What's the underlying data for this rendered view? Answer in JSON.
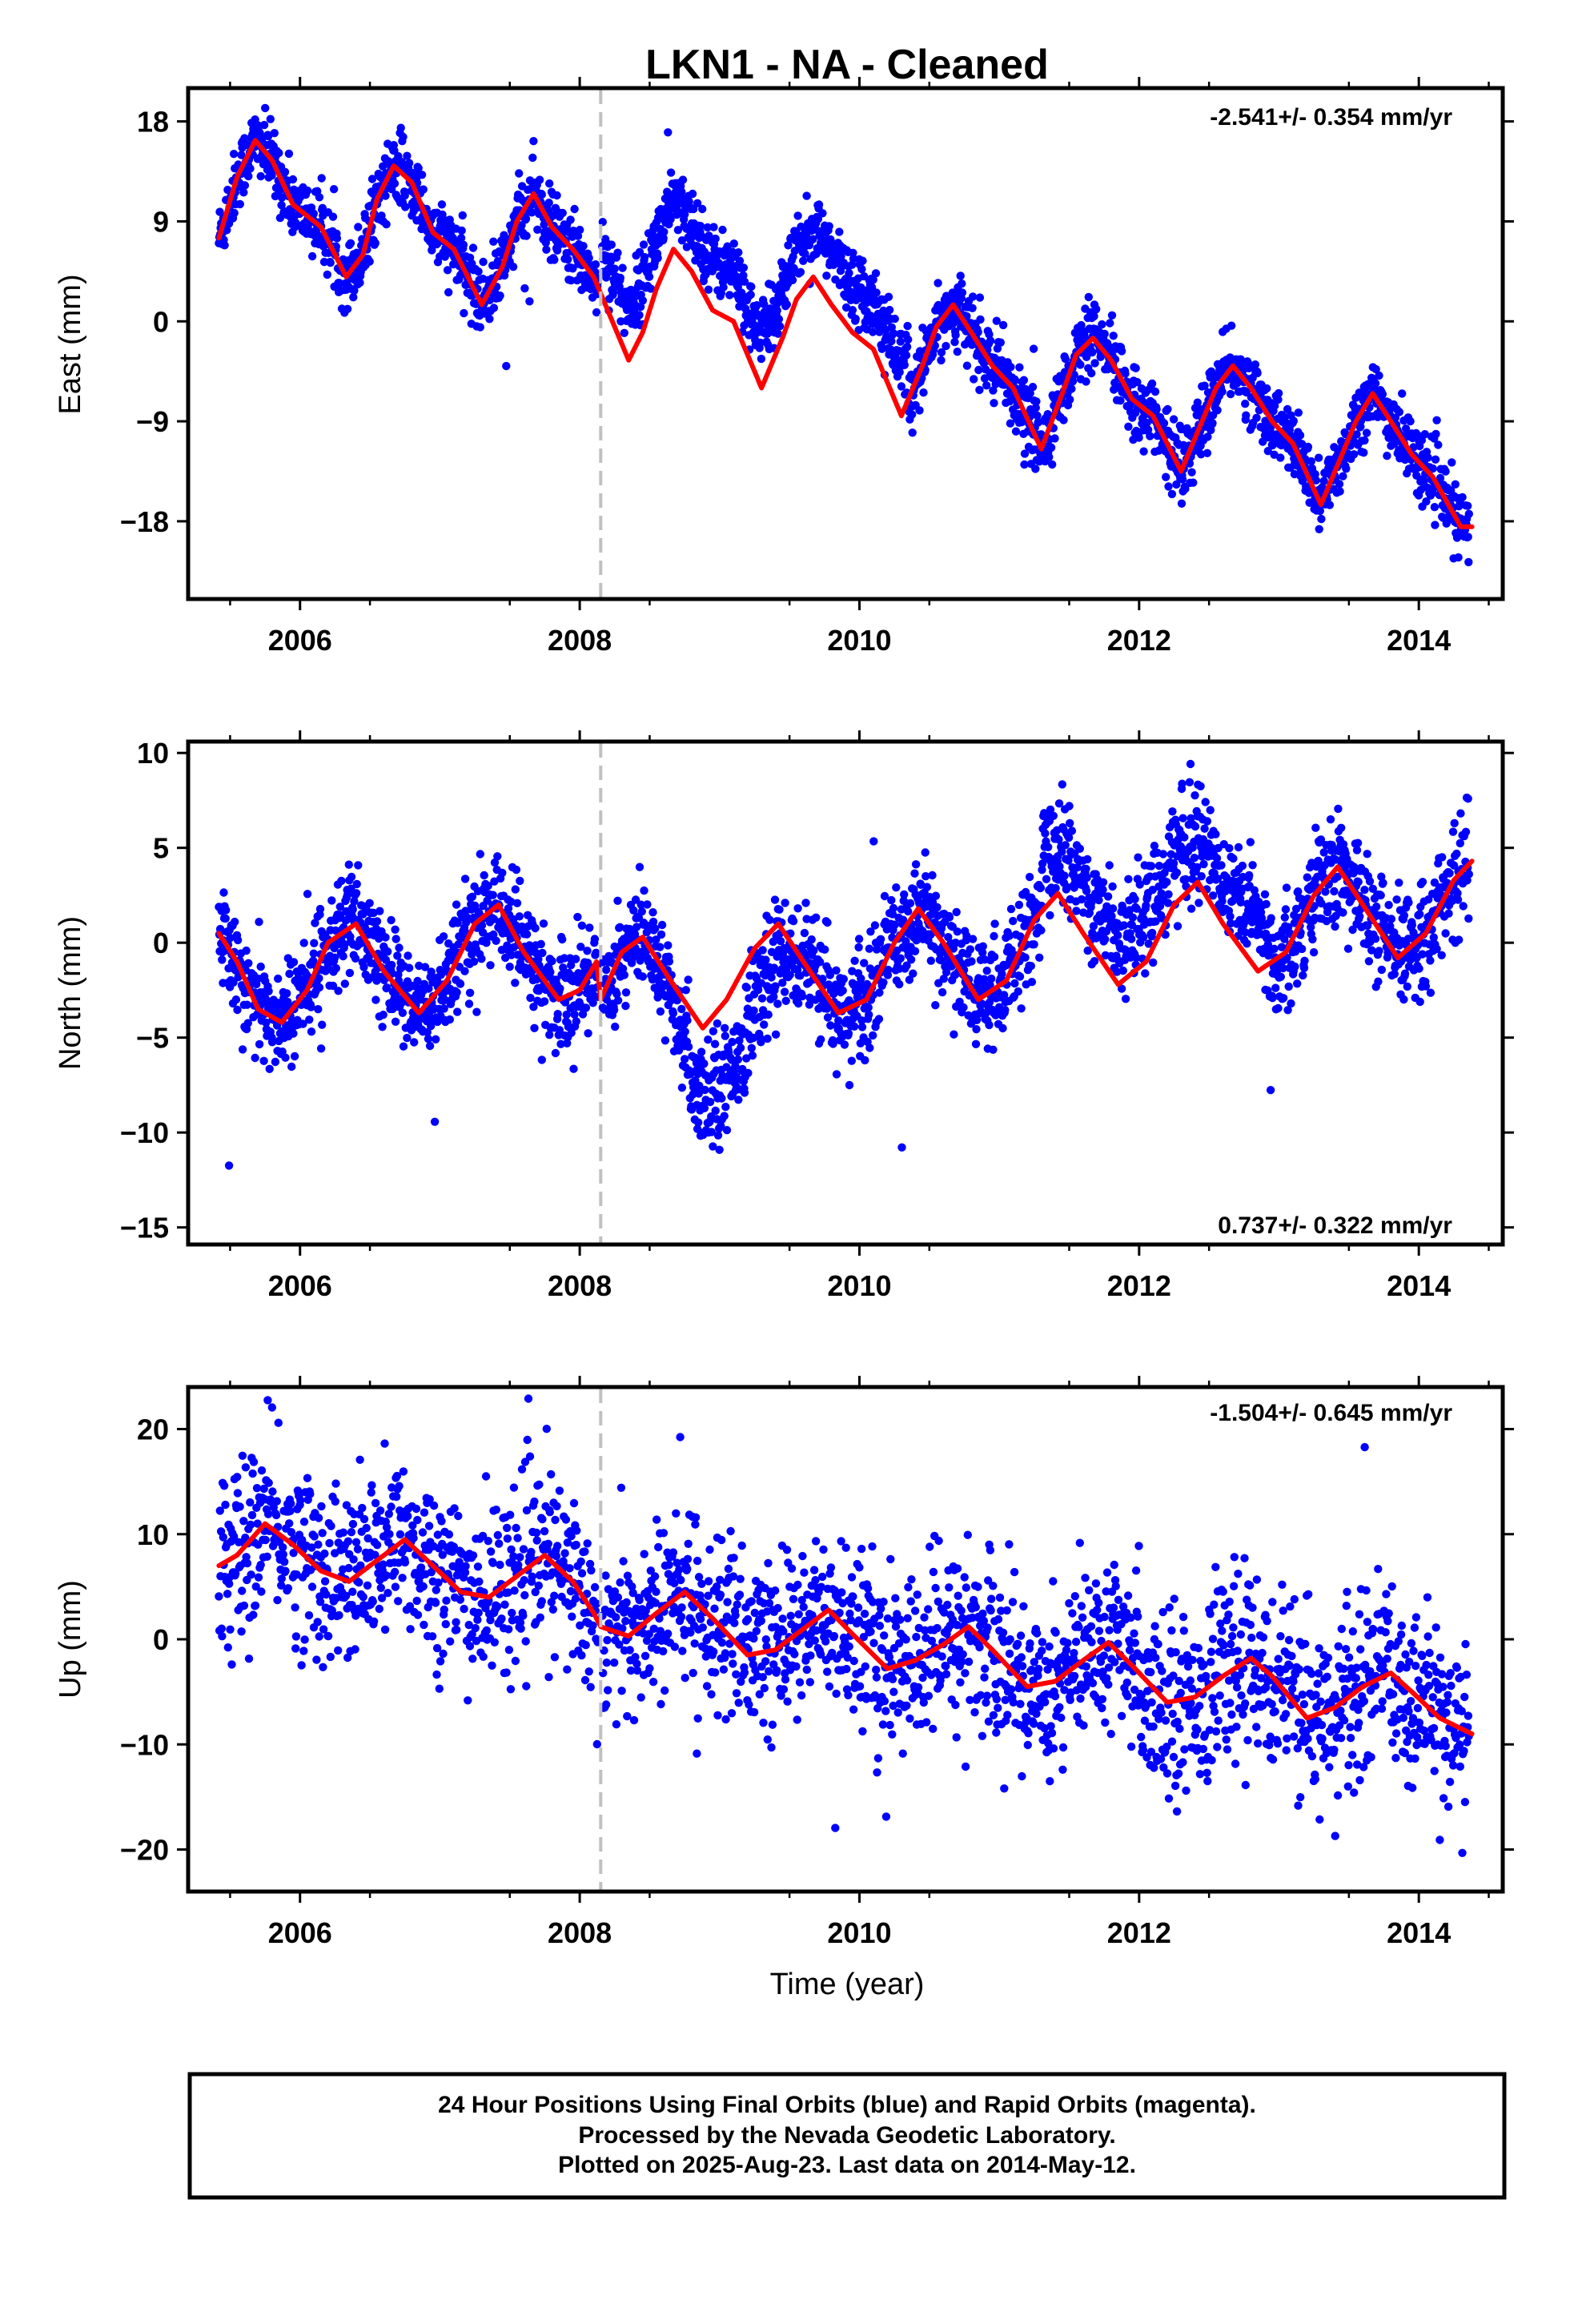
{
  "title": "LKN1  - NA - Cleaned",
  "colors": {
    "points": "#0000ff",
    "model": "#ff0000",
    "event_line": "#c0c0c0"
  },
  "chart_data": [
    {
      "type": "scatter",
      "ylabel": "East (mm)",
      "rate_text": "-2.541+/- 0.354 mm/yr",
      "yticks": [
        "18",
        "9",
        "0",
        "-9",
        "-18"
      ],
      "xticks": [
        "2006",
        "2008",
        "2010",
        "2012",
        "2014"
      ],
      "xlim": [
        2005.2,
        2014.6
      ],
      "ylim": [
        -25,
        21
      ],
      "event_line_x": 2008.15,
      "series": [
        {
          "kind": "daily positions (blue dots)",
          "trend": -2.541,
          "amplitude": 6.5,
          "noise": 1.5,
          "offsets": [
            [
              2005.4,
              2008.15,
              10.5
            ],
            [
              2008.15,
              2010.4,
              8.0
            ],
            [
              2010.4,
              2012.3,
              2.0
            ],
            [
              2012.3,
              2014.4,
              2.0
            ]
          ]
        },
        {
          "kind": "model fit (red line)",
          "samples": [
            [
              2005.42,
              7.5
            ],
            [
              2005.55,
              13
            ],
            [
              2005.68,
              16.3
            ],
            [
              2005.8,
              14.5
            ],
            [
              2005.95,
              10.5
            ],
            [
              2006.15,
              8.5
            ],
            [
              2006.33,
              4
            ],
            [
              2006.45,
              6
            ],
            [
              2006.55,
              11
            ],
            [
              2006.67,
              14
            ],
            [
              2006.8,
              12.5
            ],
            [
              2006.95,
              8
            ],
            [
              2007.1,
              6.5
            ],
            [
              2007.3,
              1.5
            ],
            [
              2007.45,
              5
            ],
            [
              2007.55,
              9
            ],
            [
              2007.67,
              11.5
            ],
            [
              2007.8,
              8.5
            ],
            [
              2007.95,
              6.5
            ],
            [
              2008.1,
              4
            ],
            [
              2008.15,
              2.5
            ],
            [
              2008.2,
              1
            ],
            [
              2008.35,
              -3.5
            ],
            [
              2008.45,
              -1
            ],
            [
              2008.55,
              3
            ],
            [
              2008.67,
              6.5
            ],
            [
              2008.8,
              4.5
            ],
            [
              2008.95,
              1
            ],
            [
              2009.1,
              0
            ],
            [
              2009.3,
              -6
            ],
            [
              2009.45,
              -1.5
            ],
            [
              2009.55,
              2
            ],
            [
              2009.67,
              4
            ],
            [
              2009.8,
              1.5
            ],
            [
              2009.95,
              -1
            ],
            [
              2010.1,
              -2.5
            ],
            [
              2010.3,
              -8.5
            ],
            [
              2010.45,
              -4
            ],
            [
              2010.55,
              -0.5
            ],
            [
              2010.67,
              1.5
            ],
            [
              2010.8,
              -1
            ],
            [
              2010.95,
              -4
            ],
            [
              2011.1,
              -6
            ],
            [
              2011.3,
              -11.5
            ],
            [
              2011.45,
              -6.5
            ],
            [
              2011.55,
              -3
            ],
            [
              2011.67,
              -1.5
            ],
            [
              2011.8,
              -3.5
            ],
            [
              2011.95,
              -7
            ],
            [
              2012.1,
              -8.5
            ],
            [
              2012.3,
              -13.5
            ],
            [
              2012.45,
              -9
            ],
            [
              2012.55,
              -6
            ],
            [
              2012.67,
              -4
            ],
            [
              2012.8,
              -6
            ],
            [
              2012.95,
              -9
            ],
            [
              2013.1,
              -11
            ],
            [
              2013.3,
              -16.5
            ],
            [
              2013.45,
              -12
            ],
            [
              2013.55,
              -9
            ],
            [
              2013.67,
              -6.5
            ],
            [
              2013.8,
              -9
            ],
            [
              2013.95,
              -12
            ],
            [
              2014.1,
              -14
            ],
            [
              2014.3,
              -18.5
            ],
            [
              2014.38,
              -18.5
            ]
          ]
        }
      ]
    },
    {
      "type": "scatter",
      "ylabel": "North (mm)",
      "rate_text": "0.737+/- 0.322 mm/yr",
      "yticks": [
        "10",
        "5",
        "0",
        "-5",
        "-10",
        "-15"
      ],
      "xticks": [
        "2006",
        "2008",
        "2010",
        "2012",
        "2014"
      ],
      "xlim": [
        2005.2,
        2014.6
      ],
      "ylim": [
        -15.9,
        10.6
      ],
      "event_line_x": 2008.15,
      "series": [
        {
          "kind": "daily positions (blue dots)",
          "trend": 0.737,
          "amplitude": 4.0,
          "noise": 1.4,
          "offsets": [
            [
              2005.4,
              2008.15,
              0.3
            ],
            [
              2008.15,
              2010.4,
              -4.5
            ],
            [
              2010.4,
              2012.3,
              2.0
            ],
            [
              2012.3,
              2014.4,
              1.5
            ]
          ]
        },
        {
          "kind": "model fit (red line)",
          "samples": [
            [
              2005.42,
              0.5
            ],
            [
              2005.55,
              -1
            ],
            [
              2005.7,
              -3.5
            ],
            [
              2005.87,
              -4.2
            ],
            [
              2006.05,
              -2.5
            ],
            [
              2006.2,
              0
            ],
            [
              2006.4,
              1
            ],
            [
              2006.6,
              -1.5
            ],
            [
              2006.85,
              -3.7
            ],
            [
              2007.05,
              -2
            ],
            [
              2007.25,
              1
            ],
            [
              2007.42,
              2
            ],
            [
              2007.6,
              -0.5
            ],
            [
              2007.85,
              -3
            ],
            [
              2008.0,
              -2.5
            ],
            [
              2008.12,
              -1
            ],
            [
              2008.15,
              -3
            ],
            [
              2008.3,
              -0.5
            ],
            [
              2008.45,
              0.3
            ],
            [
              2008.65,
              -2
            ],
            [
              2008.88,
              -4.5
            ],
            [
              2009.05,
              -3
            ],
            [
              2009.25,
              -0.3
            ],
            [
              2009.42,
              1
            ],
            [
              2009.6,
              -1
            ],
            [
              2009.85,
              -3.7
            ],
            [
              2010.05,
              -3
            ],
            [
              2010.25,
              0
            ],
            [
              2010.42,
              1.8
            ],
            [
              2010.6,
              0
            ],
            [
              2010.85,
              -3
            ],
            [
              2011.05,
              -2
            ],
            [
              2011.25,
              1.2
            ],
            [
              2011.42,
              2.6
            ],
            [
              2011.6,
              0.5
            ],
            [
              2011.85,
              -2.2
            ],
            [
              2012.05,
              -1
            ],
            [
              2012.25,
              2
            ],
            [
              2012.42,
              3.2
            ],
            [
              2012.6,
              1
            ],
            [
              2012.85,
              -1.5
            ],
            [
              2013.05,
              -0.5
            ],
            [
              2013.25,
              2.5
            ],
            [
              2013.42,
              4
            ],
            [
              2013.6,
              2
            ],
            [
              2013.85,
              -0.8
            ],
            [
              2014.05,
              0.5
            ],
            [
              2014.25,
              3.3
            ],
            [
              2014.38,
              4.3
            ]
          ]
        }
      ]
    },
    {
      "type": "scatter",
      "ylabel": "Up (mm)",
      "rate_text": "-1.504+/- 0.645 mm/yr",
      "yticks": [
        "20",
        "10",
        "0",
        "-10",
        "-20"
      ],
      "xticks": [
        "2006",
        "2008",
        "2010",
        "2012",
        "2014"
      ],
      "xlabel": "Time (year)",
      "xlim": [
        2005.2,
        2014.6
      ],
      "ylim": [
        -24,
        24
      ],
      "event_line_x": 2008.15,
      "series": [
        {
          "kind": "daily positions (blue dots)",
          "trend": -1.504,
          "amplitude": 3.0,
          "noise": 4.2,
          "offsets": [
            [
              2005.4,
              2008.15,
              8.5
            ],
            [
              2008.15,
              2010.4,
              1.5
            ],
            [
              2010.4,
              2012.3,
              -1.0
            ],
            [
              2012.3,
              2014.4,
              -3.5
            ]
          ]
        },
        {
          "kind": "model fit (red line)",
          "samples": [
            [
              2005.42,
              7
            ],
            [
              2005.55,
              8
            ],
            [
              2005.75,
              11
            ],
            [
              2005.95,
              9
            ],
            [
              2006.15,
              6.5
            ],
            [
              2006.35,
              5.5
            ],
            [
              2006.55,
              7.5
            ],
            [
              2006.75,
              9.5
            ],
            [
              2006.95,
              7
            ],
            [
              2007.15,
              4.5
            ],
            [
              2007.35,
              4
            ],
            [
              2007.55,
              6
            ],
            [
              2007.75,
              8
            ],
            [
              2007.95,
              5.5
            ],
            [
              2008.1,
              2.5
            ],
            [
              2008.15,
              1.2
            ],
            [
              2008.35,
              0.3
            ],
            [
              2008.55,
              2.5
            ],
            [
              2008.75,
              4.5
            ],
            [
              2008.95,
              2
            ],
            [
              2009.2,
              -1.5
            ],
            [
              2009.4,
              -1
            ],
            [
              2009.6,
              1
            ],
            [
              2009.78,
              2.8
            ],
            [
              2009.95,
              0.5
            ],
            [
              2010.2,
              -2.8
            ],
            [
              2010.4,
              -2
            ],
            [
              2010.6,
              -0.5
            ],
            [
              2010.78,
              1.2
            ],
            [
              2010.95,
              -1
            ],
            [
              2011.2,
              -4.5
            ],
            [
              2011.4,
              -4
            ],
            [
              2011.6,
              -2
            ],
            [
              2011.78,
              -0.3
            ],
            [
              2011.95,
              -2.5
            ],
            [
              2012.2,
              -6
            ],
            [
              2012.4,
              -5.5
            ],
            [
              2012.6,
              -3.5
            ],
            [
              2012.8,
              -1.8
            ],
            [
              2012.95,
              -3.5
            ],
            [
              2013.2,
              -7.5
            ],
            [
              2013.4,
              -6.5
            ],
            [
              2013.6,
              -4.5
            ],
            [
              2013.8,
              -3.2
            ],
            [
              2013.95,
              -5
            ],
            [
              2014.15,
              -7.5
            ],
            [
              2014.38,
              -9
            ]
          ]
        }
      ]
    }
  ],
  "footer": {
    "line1": "24 Hour Positions Using Final Orbits (blue) and Rapid Orbits (magenta).",
    "line2": "Processed by the Nevada Geodetic Laboratory.",
    "line3": "Plotted on 2025-Aug-23. Last data on 2014-May-12."
  }
}
